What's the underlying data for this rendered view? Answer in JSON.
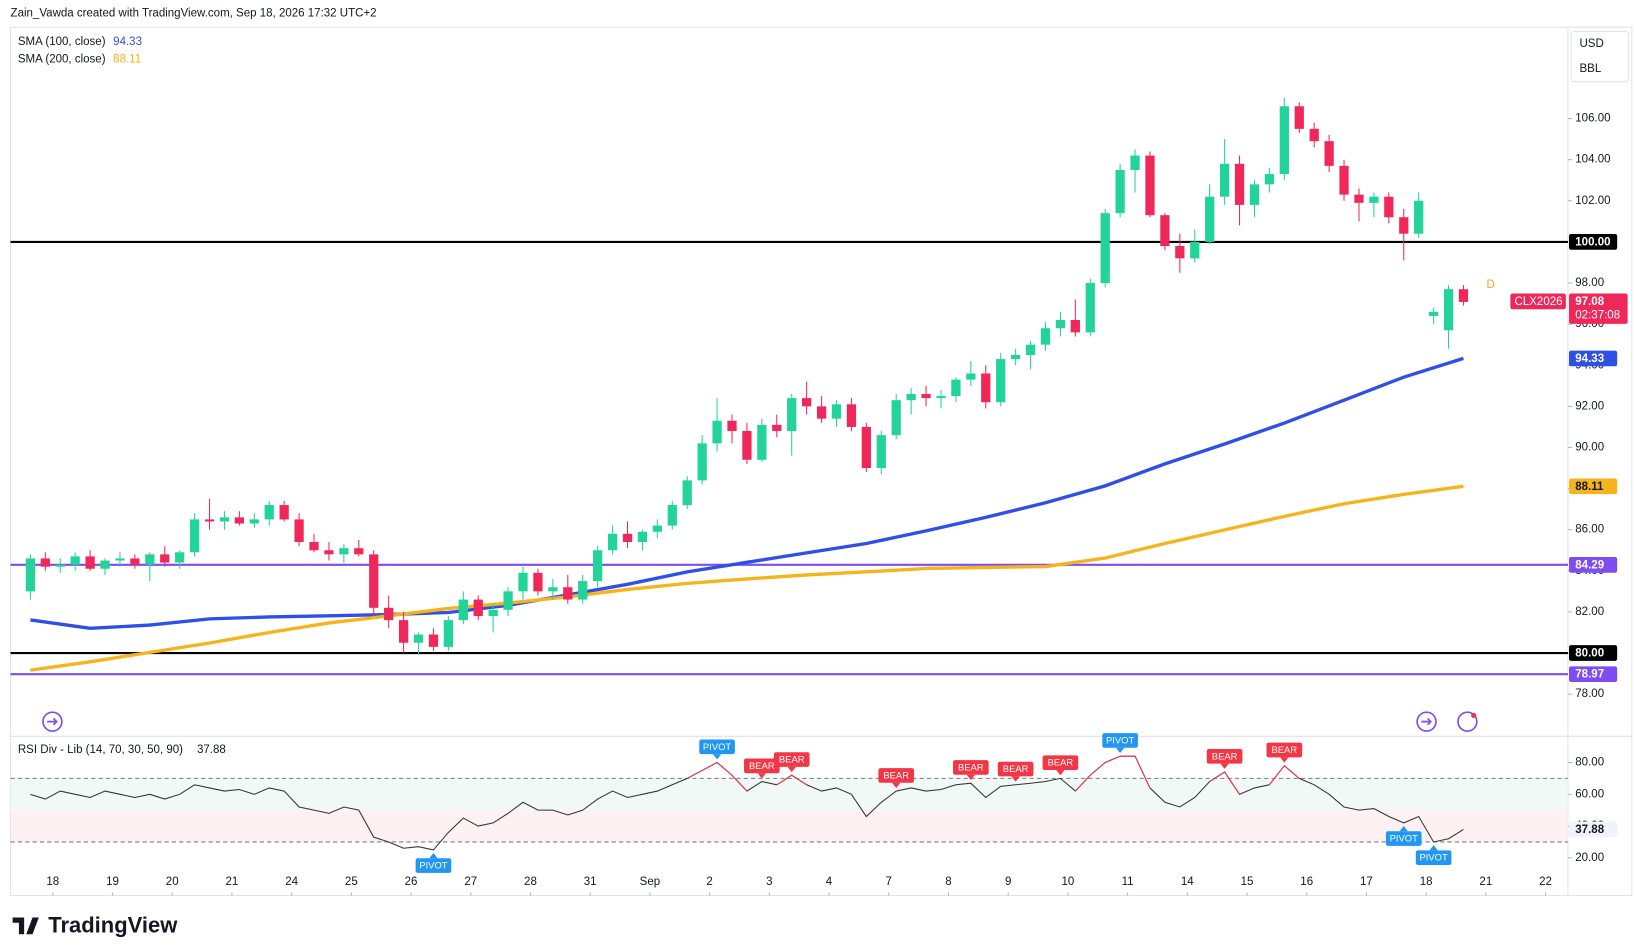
{
  "chart_data": {
    "type": "candlestick",
    "header": "Zain_Vawda created with TradingView.com, Sep 18, 2026 17:32 UTC+2",
    "currency": "USD",
    "unit": "BBL",
    "symbol": "CLX2026",
    "countdown": "02:37:08",
    "interval": "D",
    "brand": "TradingView",
    "up_color": "#22d39a",
    "down_color": "#f0285a",
    "xlim": [
      -1.33,
      103
    ],
    "xticks": [
      {
        "value": 1.5,
        "label": "18"
      },
      {
        "value": 5.5,
        "label": "19"
      },
      {
        "value": 9.5,
        "label": "20"
      },
      {
        "value": 13.5,
        "label": "21"
      },
      {
        "value": 17.5,
        "label": "24"
      },
      {
        "value": 21.5,
        "label": "25"
      },
      {
        "value": 25.5,
        "label": "26"
      },
      {
        "value": 29.5,
        "label": "27"
      },
      {
        "value": 33.5,
        "label": "28"
      },
      {
        "value": 37.5,
        "label": "31"
      },
      {
        "value": 41.5,
        "label": "Sep"
      },
      {
        "value": 45.5,
        "label": "2"
      },
      {
        "value": 49.5,
        "label": "3"
      },
      {
        "value": 53.5,
        "label": "4"
      },
      {
        "value": 57.5,
        "label": "7"
      },
      {
        "value": 61.5,
        "label": "8"
      },
      {
        "value": 65.5,
        "label": "9"
      },
      {
        "value": 69.5,
        "label": "10"
      },
      {
        "value": 73.5,
        "label": "11"
      },
      {
        "value": 77.5,
        "label": "14"
      },
      {
        "value": 81.5,
        "label": "15"
      },
      {
        "value": 85.5,
        "label": "16"
      },
      {
        "value": 89.5,
        "label": "17"
      },
      {
        "value": 93.5,
        "label": "18"
      },
      {
        "value": 97.5,
        "label": "21"
      },
      {
        "value": 101.5,
        "label": "22"
      }
    ],
    "ylim": [
      76,
      110.8
    ],
    "yticks": [
      {
        "value": 78,
        "label": "78.00"
      },
      {
        "value": 80,
        "label": "80.00"
      },
      {
        "value": 82,
        "label": "82.00"
      },
      {
        "value": 84,
        "label": "84.00"
      },
      {
        "value": 86,
        "label": "86.00"
      },
      {
        "value": 88,
        "label": "88.00"
      },
      {
        "value": 90,
        "label": "90.00"
      },
      {
        "value": 92,
        "label": "92.00"
      },
      {
        "value": 94,
        "label": "94.00"
      },
      {
        "value": 96,
        "label": "96.00"
      },
      {
        "value": 98,
        "label": "98.00"
      },
      {
        "value": 100,
        "label": "100.00"
      },
      {
        "value": 102,
        "label": "102.00"
      },
      {
        "value": 104,
        "label": "104.00"
      },
      {
        "value": 106,
        "label": "106.00"
      }
    ],
    "open": [
      83.0,
      84.6,
      84.2,
      84.3,
      84.7,
      84.1,
      84.5,
      84.6,
      84.3,
      84.8,
      84.4,
      84.9,
      86.5,
      86.4,
      86.6,
      86.3,
      86.5,
      87.2,
      86.5,
      85.4,
      85.0,
      84.8,
      85.1,
      84.8,
      82.2,
      81.6,
      80.5,
      80.9,
      80.3,
      81.6,
      82.6,
      81.8,
      82.1,
      83.0,
      83.9,
      83.0,
      83.2,
      82.6,
      83.5,
      85.0,
      85.8,
      85.4,
      85.9,
      86.2,
      87.2,
      88.4,
      90.2,
      91.3,
      90.8,
      89.4,
      91.1,
      90.8,
      92.4,
      92.0,
      91.4,
      92.1,
      91.0,
      89.0,
      90.6,
      92.3,
      92.6,
      92.4,
      92.5,
      93.3,
      93.6,
      92.2,
      94.3,
      94.5,
      95.0,
      95.8,
      96.2,
      95.6,
      98.0,
      101.4,
      103.5,
      104.2,
      101.3,
      99.8,
      99.2,
      100.0,
      102.2,
      103.8,
      101.8,
      102.8,
      103.3,
      106.6,
      105.5,
      104.9,
      103.7,
      102.3,
      101.9,
      102.2,
      101.2,
      100.4,
      96.4,
      95.7,
      97.7
    ],
    "high": [
      84.8,
      84.9,
      84.6,
      84.9,
      85.0,
      84.6,
      84.9,
      84.8,
      84.9,
      85.2,
      85.0,
      86.8,
      87.5,
      86.9,
      86.9,
      86.8,
      87.4,
      87.4,
      86.8,
      85.8,
      85.4,
      85.3,
      85.5,
      85.0,
      82.8,
      82.0,
      81.0,
      81.2,
      81.8,
      83.0,
      82.8,
      82.4,
      83.2,
      84.2,
      84.1,
      83.6,
      83.8,
      83.8,
      85.2,
      86.2,
      86.4,
      86.0,
      86.5,
      87.4,
      88.6,
      90.6,
      92.4,
      91.6,
      91.2,
      91.4,
      91.6,
      92.6,
      93.2,
      92.5,
      92.3,
      92.4,
      91.2,
      90.8,
      92.6,
      92.9,
      93.0,
      92.8,
      93.4,
      94.2,
      94.0,
      94.6,
      94.8,
      95.2,
      96.1,
      96.6,
      97.2,
      98.2,
      101.6,
      103.8,
      104.5,
      104.4,
      101.4,
      100.4,
      100.6,
      102.8,
      105.0,
      104.2,
      103.0,
      103.6,
      107.0,
      106.8,
      105.8,
      105.2,
      104.0,
      102.6,
      102.4,
      102.4,
      101.6,
      102.4,
      96.8,
      97.9,
      97.9
    ],
    "low": [
      82.6,
      84.0,
      83.9,
      84.0,
      84.0,
      83.8,
      84.2,
      84.1,
      83.5,
      84.2,
      84.1,
      84.7,
      86.0,
      86.0,
      86.2,
      86.1,
      86.2,
      86.4,
      85.2,
      84.9,
      84.5,
      84.4,
      84.7,
      81.8,
      81.2,
      80.0,
      79.9,
      80.1,
      80.1,
      81.4,
      81.6,
      81.0,
      81.8,
      82.6,
      82.8,
      82.6,
      82.4,
      82.4,
      83.2,
      84.8,
      85.1,
      85.0,
      85.6,
      86.0,
      87.0,
      88.2,
      89.8,
      90.2,
      89.2,
      89.3,
      90.5,
      89.6,
      91.6,
      91.2,
      91.0,
      90.8,
      88.8,
      88.7,
      90.4,
      91.6,
      92.0,
      91.9,
      92.2,
      93.0,
      91.9,
      92.0,
      94.0,
      93.8,
      94.7,
      95.4,
      95.4,
      95.4,
      97.8,
      101.2,
      102.4,
      101.2,
      99.6,
      98.5,
      99.0,
      99.9,
      101.8,
      100.8,
      101.2,
      102.4,
      103.0,
      105.3,
      104.6,
      103.4,
      102.0,
      101.0,
      101.2,
      100.9,
      99.1,
      100.2,
      96.0,
      94.8,
      96.9
    ],
    "close": [
      84.6,
      84.2,
      84.3,
      84.7,
      84.1,
      84.5,
      84.6,
      84.3,
      84.8,
      84.4,
      84.9,
      86.5,
      86.4,
      86.6,
      86.3,
      86.5,
      87.2,
      86.5,
      85.4,
      85.0,
      84.8,
      85.1,
      84.8,
      82.2,
      81.6,
      80.5,
      80.9,
      80.3,
      81.6,
      82.6,
      81.8,
      82.1,
      83.0,
      83.9,
      83.0,
      83.2,
      82.6,
      83.5,
      85.0,
      85.8,
      85.4,
      85.9,
      86.2,
      87.2,
      88.4,
      90.2,
      91.3,
      90.8,
      89.4,
      91.1,
      90.8,
      92.4,
      92.0,
      91.4,
      92.1,
      91.0,
      89.0,
      90.6,
      92.3,
      92.6,
      92.4,
      92.5,
      93.3,
      93.6,
      92.2,
      94.3,
      94.5,
      95.0,
      95.8,
      96.2,
      95.6,
      98.0,
      101.4,
      103.5,
      104.2,
      101.3,
      99.8,
      99.2,
      100.0,
      102.2,
      103.8,
      101.8,
      102.8,
      103.3,
      106.6,
      105.5,
      104.9,
      103.7,
      102.3,
      101.9,
      102.2,
      101.2,
      100.4,
      102.0,
      96.6,
      97.7,
      97.08
    ],
    "sma": [
      {
        "name": "SMA (100, close)",
        "color": "#2f4fe6",
        "x": [
          0,
          4,
          8,
          12,
          16,
          20,
          24,
          28,
          32,
          36,
          40,
          44,
          48,
          52,
          56,
          60,
          64,
          68,
          72,
          76,
          80,
          84,
          88,
          92,
          96
        ],
        "values": [
          81.61,
          81.2,
          81.36,
          81.66,
          81.76,
          81.81,
          81.87,
          81.97,
          82.32,
          82.83,
          83.34,
          83.95,
          84.41,
          84.87,
          85.33,
          85.94,
          86.6,
          87.31,
          88.13,
          89.2,
          90.17,
          91.19,
          92.3,
          93.42,
          94.33
        ]
      },
      {
        "name": "SMA (200, close)",
        "color": "#f5b31c",
        "x": [
          0,
          4,
          8,
          12,
          16,
          20,
          24,
          28,
          32,
          36,
          40,
          44,
          48,
          52,
          56,
          60,
          64,
          68,
          72,
          76,
          80,
          84,
          88,
          92,
          96
        ],
        "values": [
          79.17,
          79.57,
          80.03,
          80.49,
          81.0,
          81.46,
          81.81,
          82.17,
          82.43,
          82.73,
          83.09,
          83.39,
          83.6,
          83.8,
          83.95,
          84.11,
          84.16,
          84.21,
          84.62,
          85.33,
          85.99,
          86.65,
          87.26,
          87.72,
          88.11
        ]
      }
    ],
    "hlines": [
      {
        "value": 100,
        "label": "100.00",
        "color": "#000000"
      },
      {
        "value": 80,
        "label": "80.00",
        "color": "#000000"
      },
      {
        "value": 84.29,
        "color": "#7e4df2"
      },
      {
        "value": 78.97,
        "color": "#7e4df2"
      }
    ],
    "rsi": {
      "title": "RSI Div - Lib (14, 70, 30, 50, 90)",
      "color": "#333333",
      "ob_color": "#f23645",
      "ylim": [
        11.45,
        95.2
      ],
      "yticks": [
        {
          "value": 20,
          "label": "20.00"
        },
        {
          "value": 40,
          "label": "40.00"
        },
        {
          "value": 60,
          "label": "60.00"
        },
        {
          "value": 80,
          "label": "80.00"
        }
      ],
      "levels": [
        70,
        50,
        30
      ],
      "values": [
        60,
        57,
        62,
        60,
        58,
        62,
        60,
        58,
        60,
        57,
        60,
        66,
        64,
        62,
        63,
        60,
        64,
        62,
        52,
        50,
        48,
        52,
        50,
        33,
        30,
        26,
        27,
        25,
        36,
        45,
        40,
        42,
        48,
        55,
        50,
        50,
        47,
        50,
        57,
        62,
        58,
        60,
        62,
        66,
        70,
        75,
        80,
        72,
        62,
        68,
        66,
        72,
        66,
        62,
        64,
        60,
        46,
        55,
        62,
        64,
        62,
        63,
        66,
        67,
        58,
        65,
        66,
        67,
        68,
        70,
        62,
        72,
        80,
        84,
        84,
        64,
        55,
        52,
        58,
        68,
        74,
        60,
        64,
        66,
        78,
        70,
        66,
        60,
        52,
        50,
        51,
        46,
        42,
        46,
        30,
        32,
        37.88
      ],
      "labels": [
        {
          "text": "PIVOT",
          "at": 27
        },
        {
          "text": "PIVOT",
          "at": 46
        },
        {
          "text": "BEAR",
          "at": 49
        },
        {
          "text": "BEAR",
          "at": 51
        },
        {
          "text": "BEAR",
          "at": 58
        },
        {
          "text": "BEAR",
          "at": 63
        },
        {
          "text": "BEAR",
          "at": 66
        },
        {
          "text": "BEAR",
          "at": 69
        },
        {
          "text": "PIVOT",
          "at": 73
        },
        {
          "text": "BEAR",
          "at": 80
        },
        {
          "text": "BEAR",
          "at": 84
        },
        {
          "text": "PIVOT",
          "at": 92
        },
        {
          "text": "PIVOT",
          "at": 94
        }
      ],
      "pivot_color": "#2196f3",
      "bear_color": "#f23645"
    }
  }
}
